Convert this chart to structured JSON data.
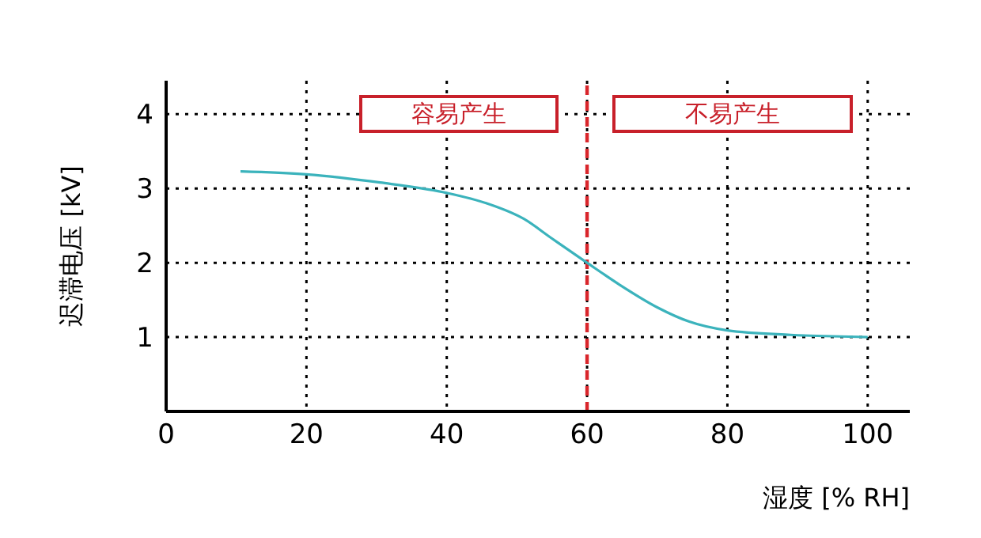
{
  "chart_data": {
    "type": "line",
    "xlabel": "湿度 [% RH]",
    "ylabel": "迟滞电压 [kV]",
    "x": [
      10.6,
      20,
      30.5,
      40,
      45.7,
      51,
      54.8,
      60,
      64.7,
      70,
      74.5,
      80,
      89,
      100
    ],
    "series": [
      {
        "color": "#3bb3bc",
        "values": [
          3.23,
          3.19,
          3.08,
          2.94,
          2.8,
          2.59,
          2.34,
          2.0,
          1.7,
          1.4,
          1.21,
          1.09,
          1.03,
          1.0
        ]
      }
    ],
    "xlim": [
      0,
      106
    ],
    "xticks": [
      0,
      20,
      40,
      60,
      80,
      100
    ],
    "ylim": [
      0,
      4.45
    ],
    "yticks": [
      1,
      2,
      3,
      4
    ],
    "grid": true,
    "marker": "none",
    "line_style": "solid",
    "ref_lines": [
      {
        "axis": "x",
        "value": 60,
        "color": "#d9252b",
        "line_style": "dashed"
      }
    ],
    "annotations": [
      "容易产生",
      "不易产生"
    ]
  }
}
